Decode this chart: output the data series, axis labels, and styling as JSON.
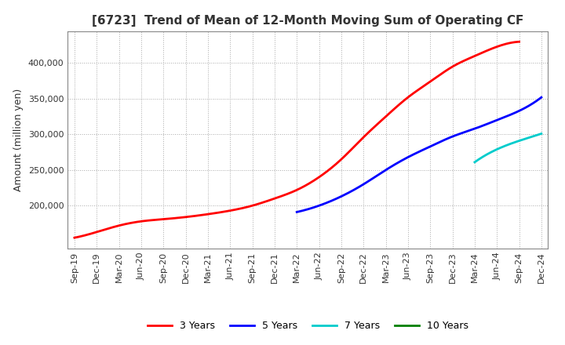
{
  "title": "[6723]  Trend of Mean of 12-Month Moving Sum of Operating CF",
  "ylabel": "Amount (million yen)",
  "background_color": "#ffffff",
  "grid_color": "#aaaaaa",
  "x_labels": [
    "Sep-19",
    "Dec-19",
    "Mar-20",
    "Jun-20",
    "Sep-20",
    "Dec-20",
    "Mar-21",
    "Jun-21",
    "Sep-21",
    "Dec-21",
    "Mar-22",
    "Jun-22",
    "Sep-22",
    "Dec-22",
    "Mar-23",
    "Jun-23",
    "Sep-23",
    "Dec-23",
    "Mar-24",
    "Jun-24",
    "Sep-24",
    "Dec-24"
  ],
  "series": {
    "3 Years": {
      "color": "#ff0000",
      "values": [
        155000,
        163000,
        172000,
        178000,
        181000,
        184000,
        188000,
        193000,
        200000,
        210000,
        222000,
        240000,
        265000,
        296000,
        325000,
        352000,
        374000,
        395000,
        410000,
        423000,
        430000,
        null
      ]
    },
    "5 Years": {
      "color": "#0000ff",
      "values": [
        null,
        null,
        null,
        null,
        null,
        null,
        null,
        null,
        null,
        null,
        191000,
        200000,
        213000,
        230000,
        250000,
        268000,
        283000,
        297000,
        308000,
        320000,
        333000,
        352000
      ]
    },
    "7 Years": {
      "color": "#00cccc",
      "values": [
        null,
        null,
        null,
        null,
        null,
        null,
        null,
        null,
        null,
        null,
        null,
        null,
        null,
        null,
        null,
        null,
        null,
        null,
        261000,
        279000,
        291000,
        301000
      ]
    },
    "10 Years": {
      "color": "#008000",
      "values": [
        null,
        null,
        null,
        null,
        null,
        null,
        null,
        null,
        null,
        null,
        null,
        null,
        null,
        null,
        null,
        null,
        null,
        null,
        null,
        null,
        null,
        null
      ]
    }
  },
  "ylim": [
    140000,
    445000
  ],
  "yticks": [
    200000,
    250000,
    300000,
    350000,
    400000
  ],
  "legend_entries": [
    "3 Years",
    "5 Years",
    "7 Years",
    "10 Years"
  ],
  "legend_colors": [
    "#ff0000",
    "#0000ff",
    "#00cccc",
    "#008000"
  ],
  "title_fontsize": 11,
  "ylabel_fontsize": 9,
  "tick_fontsize": 8,
  "legend_fontsize": 9
}
